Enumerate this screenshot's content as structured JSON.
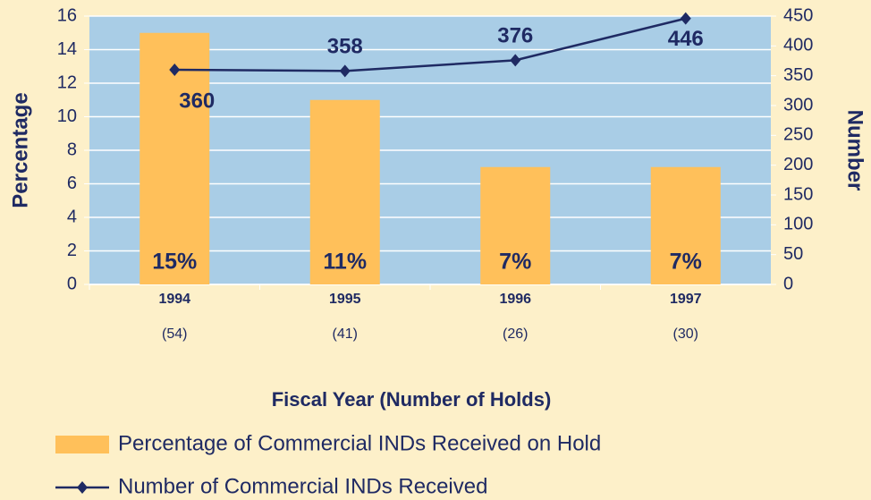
{
  "chart_data": {
    "type": "bar",
    "categories": [
      "1994",
      "1995",
      "1996",
      "1997"
    ],
    "category_sublabels": [
      "(54)",
      "(41)",
      "(26)",
      "(30)"
    ],
    "series": [
      {
        "name": "Percentage of  Commercial INDs Received on Hold",
        "type": "bar",
        "color": "#ffc05a",
        "values": [
          15,
          11,
          7,
          7
        ],
        "value_labels": [
          "15%",
          "11%",
          "7%",
          "7%"
        ]
      },
      {
        "name": "Number of Commercial INDs Received",
        "type": "line",
        "axis": "y2",
        "color": "#1f2a63",
        "values": [
          360,
          358,
          376,
          446
        ]
      }
    ],
    "xlabel": "Fiscal Year (Number of Holds)",
    "ylabel": "Percentage",
    "y2label": "Number",
    "ylim": [
      0,
      16
    ],
    "yticks": [
      0,
      2,
      4,
      6,
      8,
      10,
      12,
      14,
      16
    ],
    "y2lim": [
      0,
      450
    ],
    "y2ticks": [
      0,
      50,
      100,
      150,
      200,
      250,
      300,
      350,
      400,
      450
    ],
    "grid": true
  }
}
